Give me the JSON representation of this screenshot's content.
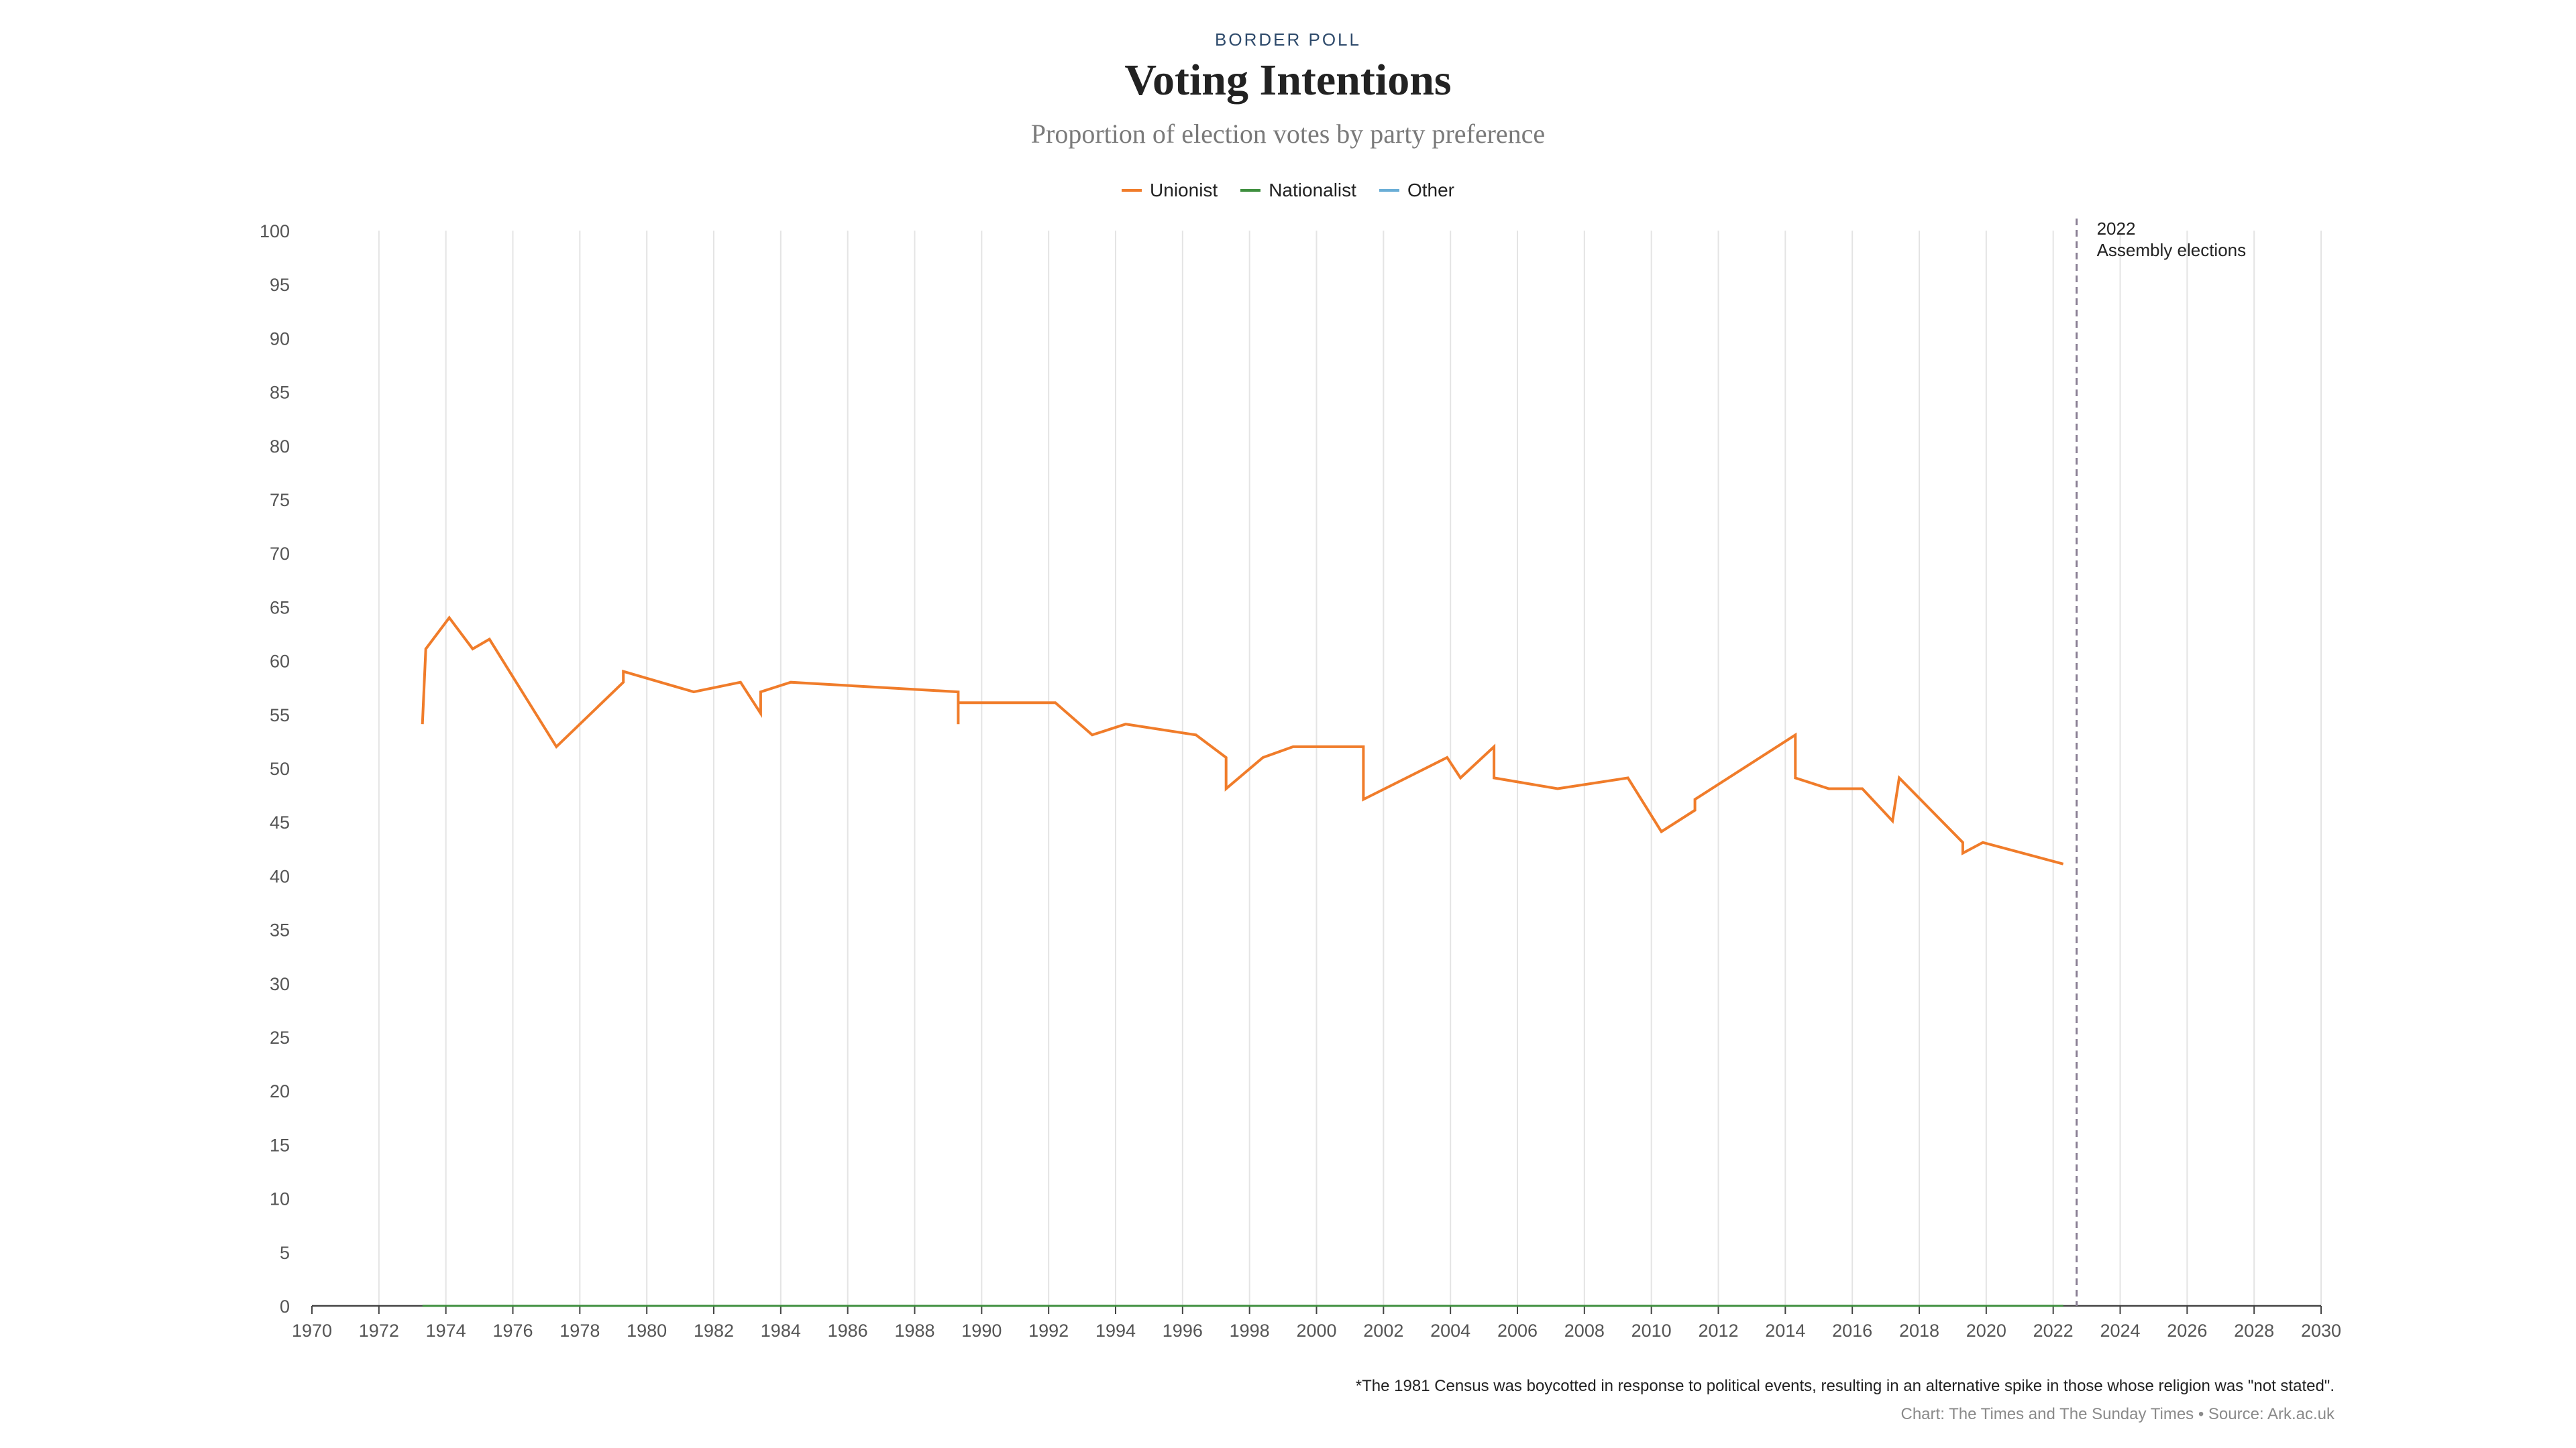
{
  "header": {
    "kicker": "BORDER POLL",
    "title": "Voting Intentions",
    "subtitle": "Proportion of election votes by party preference"
  },
  "footer": {
    "footnote": "*The 1981 Census was boycotted in response to political events, resulting in an alternative spike in those whose religion was \"not stated\".",
    "credit": "Chart: The Times and The Sunday Times • Source: Ark.ac.uk"
  },
  "colors": {
    "unionist": "#f07c2a",
    "nationalist": "#3f8f3f",
    "other": "#6aaed6",
    "grid": "#e4e4e4",
    "axis": "#444444",
    "annotation": "#8a7f94"
  },
  "chart_data": {
    "type": "line",
    "title": "Voting Intentions",
    "subtitle": "Proportion of election votes by party preference",
    "xlabel": "",
    "ylabel": "",
    "xlim": [
      1970,
      2030
    ],
    "ylim": [
      0,
      100
    ],
    "xticks": [
      1970,
      1972,
      1974,
      1976,
      1978,
      1980,
      1982,
      1984,
      1986,
      1988,
      1990,
      1992,
      1994,
      1996,
      1998,
      2000,
      2002,
      2004,
      2006,
      2008,
      2010,
      2012,
      2014,
      2016,
      2018,
      2020,
      2022,
      2024,
      2026,
      2028,
      2030
    ],
    "yticks": [
      0,
      5,
      10,
      15,
      20,
      25,
      30,
      35,
      40,
      45,
      50,
      55,
      60,
      65,
      70,
      75,
      80,
      85,
      90,
      95,
      100
    ],
    "grid": "vertical",
    "legend_position": "top-center",
    "series": [
      {
        "name": "Unionist",
        "color": "#f07c2a",
        "points": [
          [
            1973.3,
            54.1
          ],
          [
            1973.4,
            61.1
          ],
          [
            1974.1,
            64.0
          ],
          [
            1974.8,
            61.1
          ],
          [
            1975.3,
            62.0
          ],
          [
            1977.3,
            52.0
          ],
          [
            1979.3,
            58.0
          ],
          [
            1979.3,
            59.0
          ],
          [
            1981.4,
            57.1
          ],
          [
            1982.8,
            58.0
          ],
          [
            1983.4,
            55.1
          ],
          [
            1983.4,
            57.1
          ],
          [
            1984.3,
            58.0
          ],
          [
            1989.3,
            57.1
          ],
          [
            1989.3,
            54.1
          ],
          [
            1989.3,
            56.1
          ],
          [
            1992.2,
            56.1
          ],
          [
            1993.3,
            53.1
          ],
          [
            1994.3,
            54.1
          ],
          [
            1996.4,
            53.1
          ],
          [
            1997.3,
            51.0
          ],
          [
            1997.3,
            48.1
          ],
          [
            1998.4,
            51.0
          ],
          [
            1999.3,
            52.0
          ],
          [
            2001.4,
            52.0
          ],
          [
            2001.4,
            47.1
          ],
          [
            2003.9,
            51.0
          ],
          [
            2004.3,
            49.1
          ],
          [
            2005.3,
            52.0
          ],
          [
            2005.3,
            49.1
          ],
          [
            2007.2,
            48.1
          ],
          [
            2009.3,
            49.1
          ],
          [
            2010.3,
            44.1
          ],
          [
            2011.3,
            46.1
          ],
          [
            2011.3,
            47.1
          ],
          [
            2014.3,
            53.1
          ],
          [
            2014.3,
            49.1
          ],
          [
            2015.3,
            48.1
          ],
          [
            2016.3,
            48.1
          ],
          [
            2017.2,
            45.1
          ],
          [
            2017.4,
            49.1
          ],
          [
            2019.3,
            43.1
          ],
          [
            2019.3,
            42.1
          ],
          [
            2019.9,
            43.1
          ],
          [
            2022.3,
            41.1
          ]
        ]
      },
      {
        "name": "Nationalist",
        "color": "#3f8f3f",
        "points": [
          [
            1973.3,
            0
          ],
          [
            2022.3,
            0
          ]
        ]
      },
      {
        "name": "Other",
        "color": "#6aaed6",
        "points": []
      }
    ],
    "annotations": [
      {
        "x": 2022.7,
        "line1": "2022",
        "line2": "Assembly elections",
        "style": "dashed"
      }
    ]
  }
}
